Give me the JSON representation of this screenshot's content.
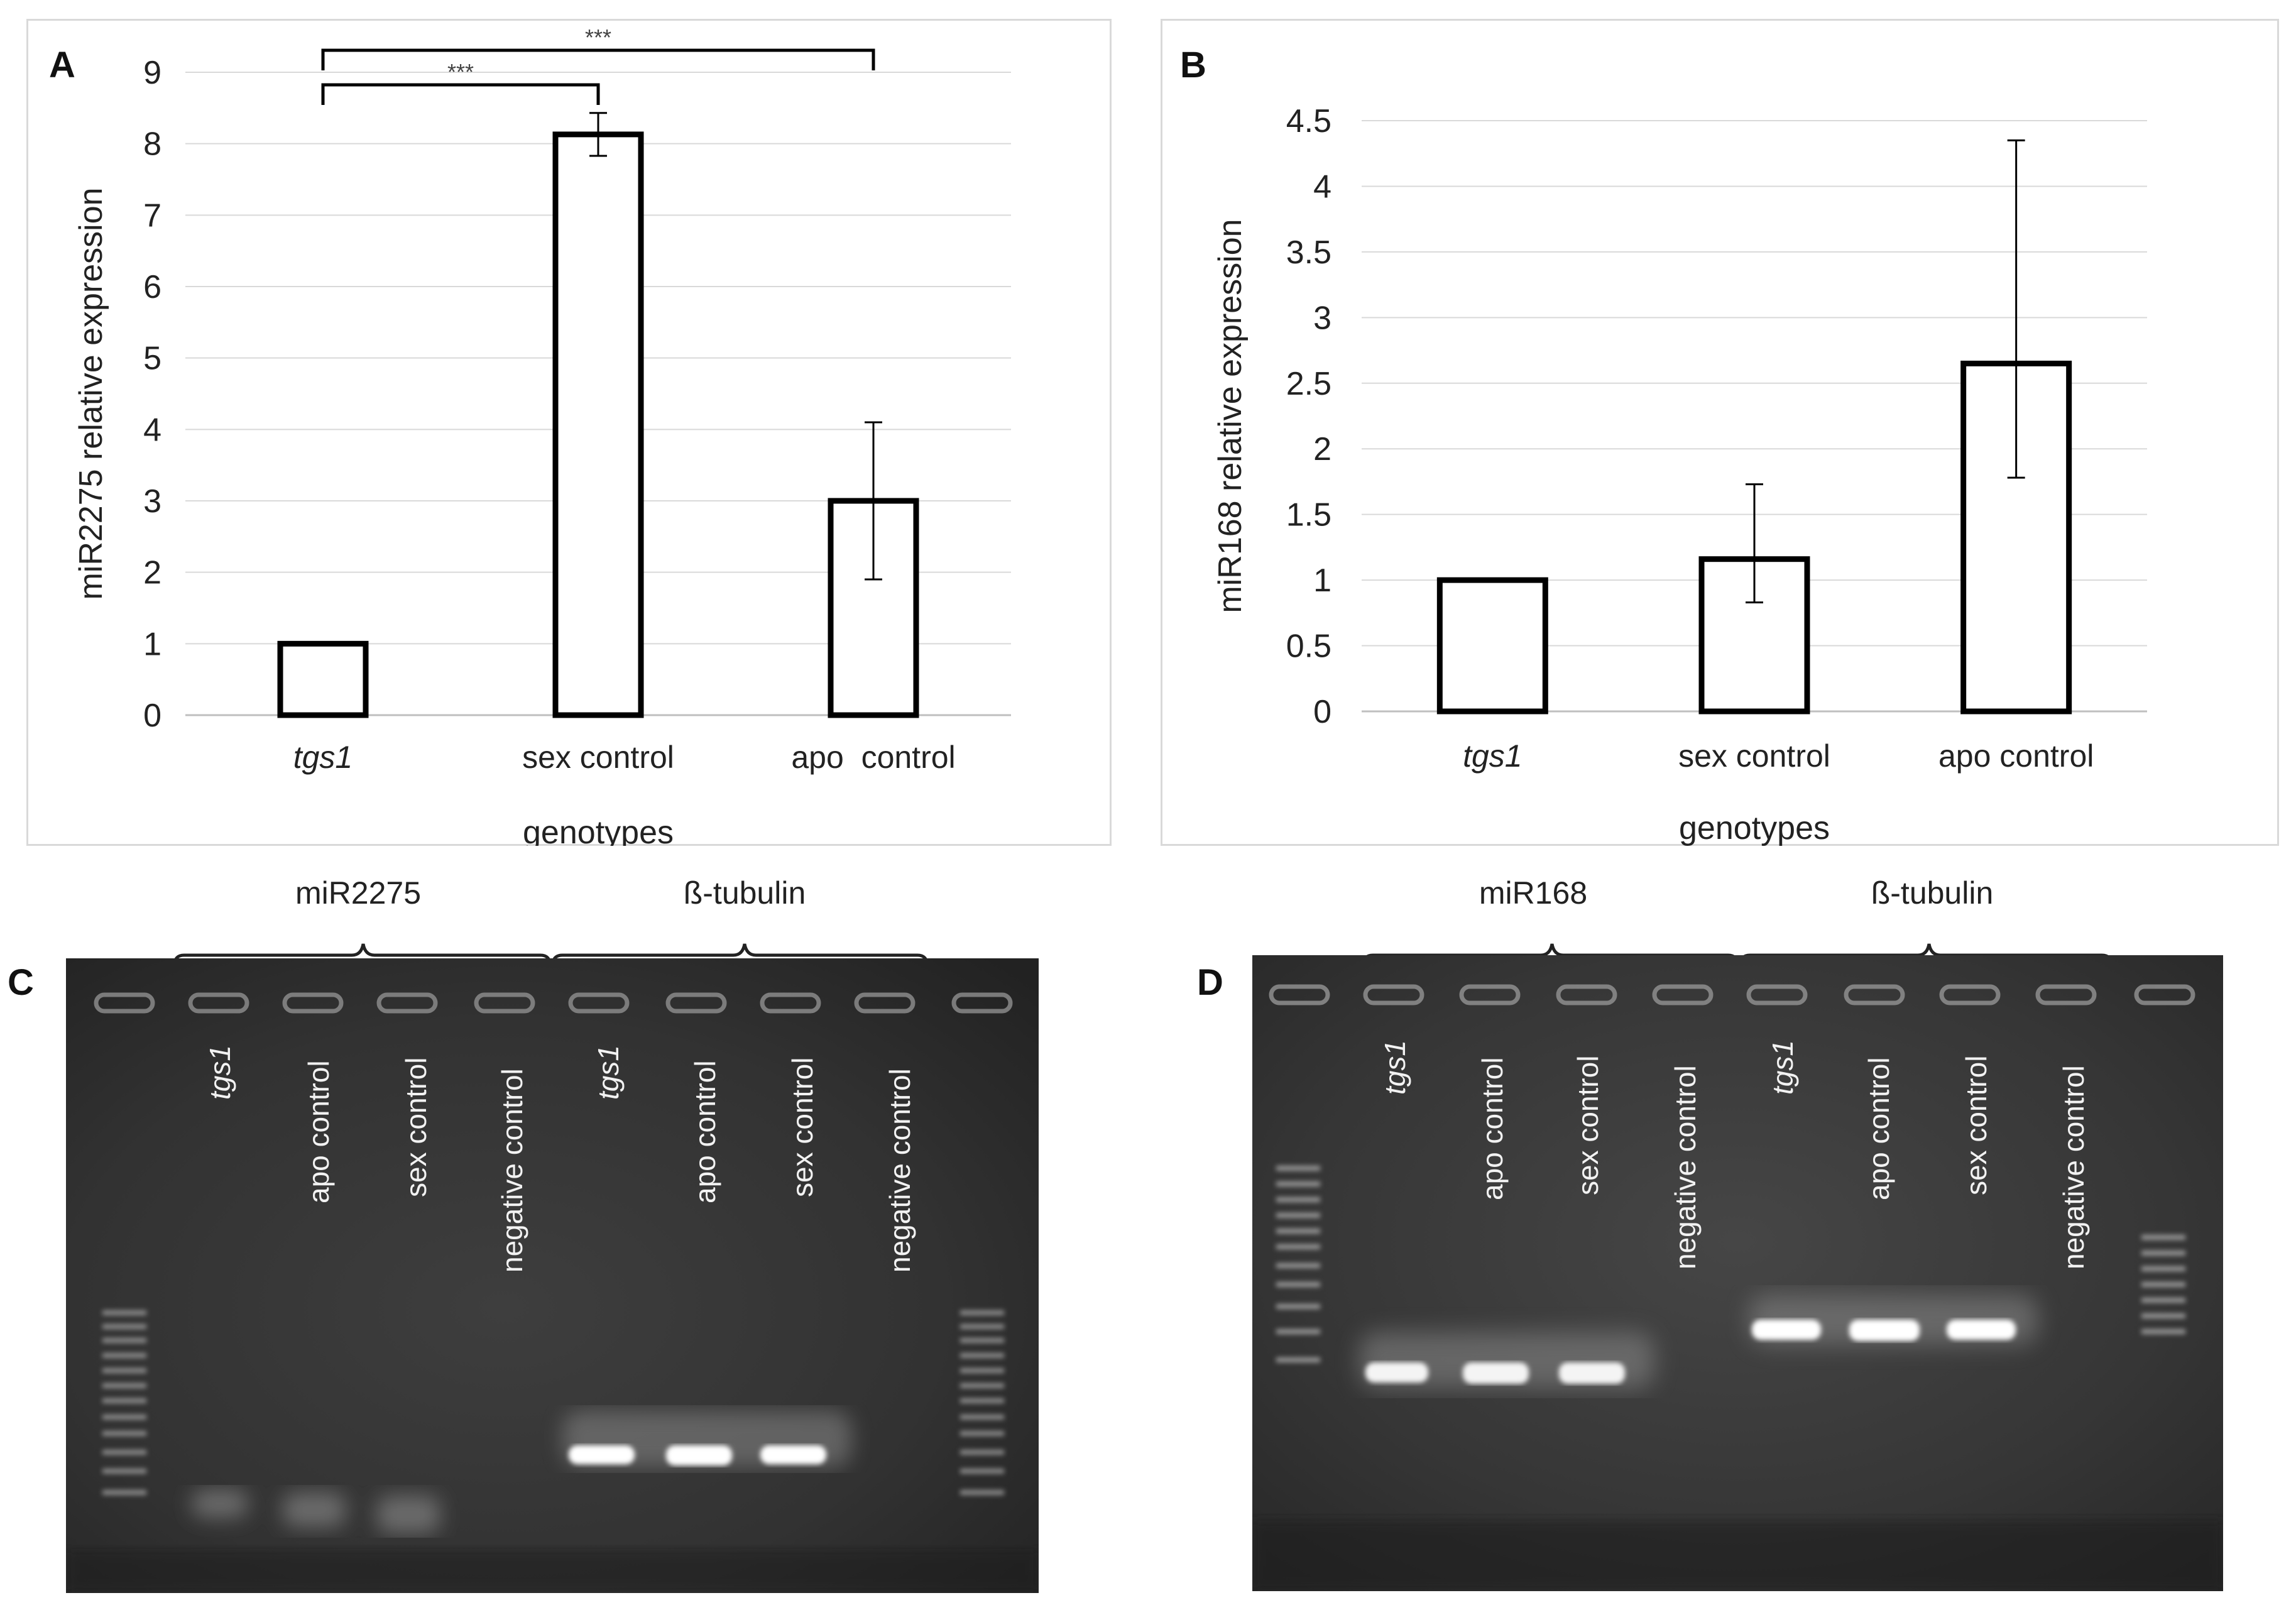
{
  "panels": {
    "A": {
      "letter": "A"
    },
    "B": {
      "letter": "B"
    },
    "C": {
      "letter": "C"
    },
    "D": {
      "letter": "D"
    }
  },
  "chart_data": [
    {
      "type": "bar",
      "panel": "A",
      "categories": [
        "tgs1",
        "sex control",
        "apo  control"
      ],
      "values": [
        1.0,
        8.13,
        3.0
      ],
      "error_low": [
        0,
        0.3,
        1.1
      ],
      "error_high": [
        0,
        0.3,
        1.1
      ],
      "xlabel": "genotypes",
      "ylabel": "miR2275 relative expression",
      "ylim": [
        0,
        9
      ],
      "yticks": [
        "0",
        "1",
        "2",
        "3",
        "4",
        "5",
        "6",
        "7",
        "8",
        "9"
      ],
      "grid": true,
      "significance": [
        {
          "from": "tgs1",
          "to": "sex control",
          "label": "***"
        },
        {
          "from": "tgs1",
          "to": "apo  control",
          "label": "***"
        }
      ]
    },
    {
      "type": "bar",
      "panel": "B",
      "categories": [
        "tgs1",
        "sex control",
        "apo control"
      ],
      "values": [
        1.0,
        1.16,
        2.65
      ],
      "error_low": [
        0,
        0.33,
        0.87
      ],
      "error_high": [
        0,
        0.57,
        1.7
      ],
      "xlabel": "genotypes",
      "ylabel": "miR168 relative expression",
      "ylim": [
        0,
        4.5
      ],
      "yticks": [
        "0",
        "0.5",
        "1",
        "1.5",
        "2",
        "2.5",
        "3",
        "3.5",
        "4",
        "4.5"
      ],
      "grid": true
    }
  ],
  "gel_C": {
    "groups": [
      {
        "label": "miR2275"
      },
      {
        "label": "ß-tubulin"
      }
    ],
    "lanes": [
      "tgs1",
      "apo control",
      "sex control",
      "negative control",
      "tgs1",
      "apo control",
      "sex control",
      "negative control"
    ]
  },
  "gel_D": {
    "groups": [
      {
        "label": "miR168"
      },
      {
        "label": "ß-tubulin"
      }
    ],
    "lanes": [
      "tgs1",
      "apo control",
      "sex control",
      "negative control",
      "tgs1",
      "apo control",
      "sex control",
      "negative control"
    ]
  }
}
